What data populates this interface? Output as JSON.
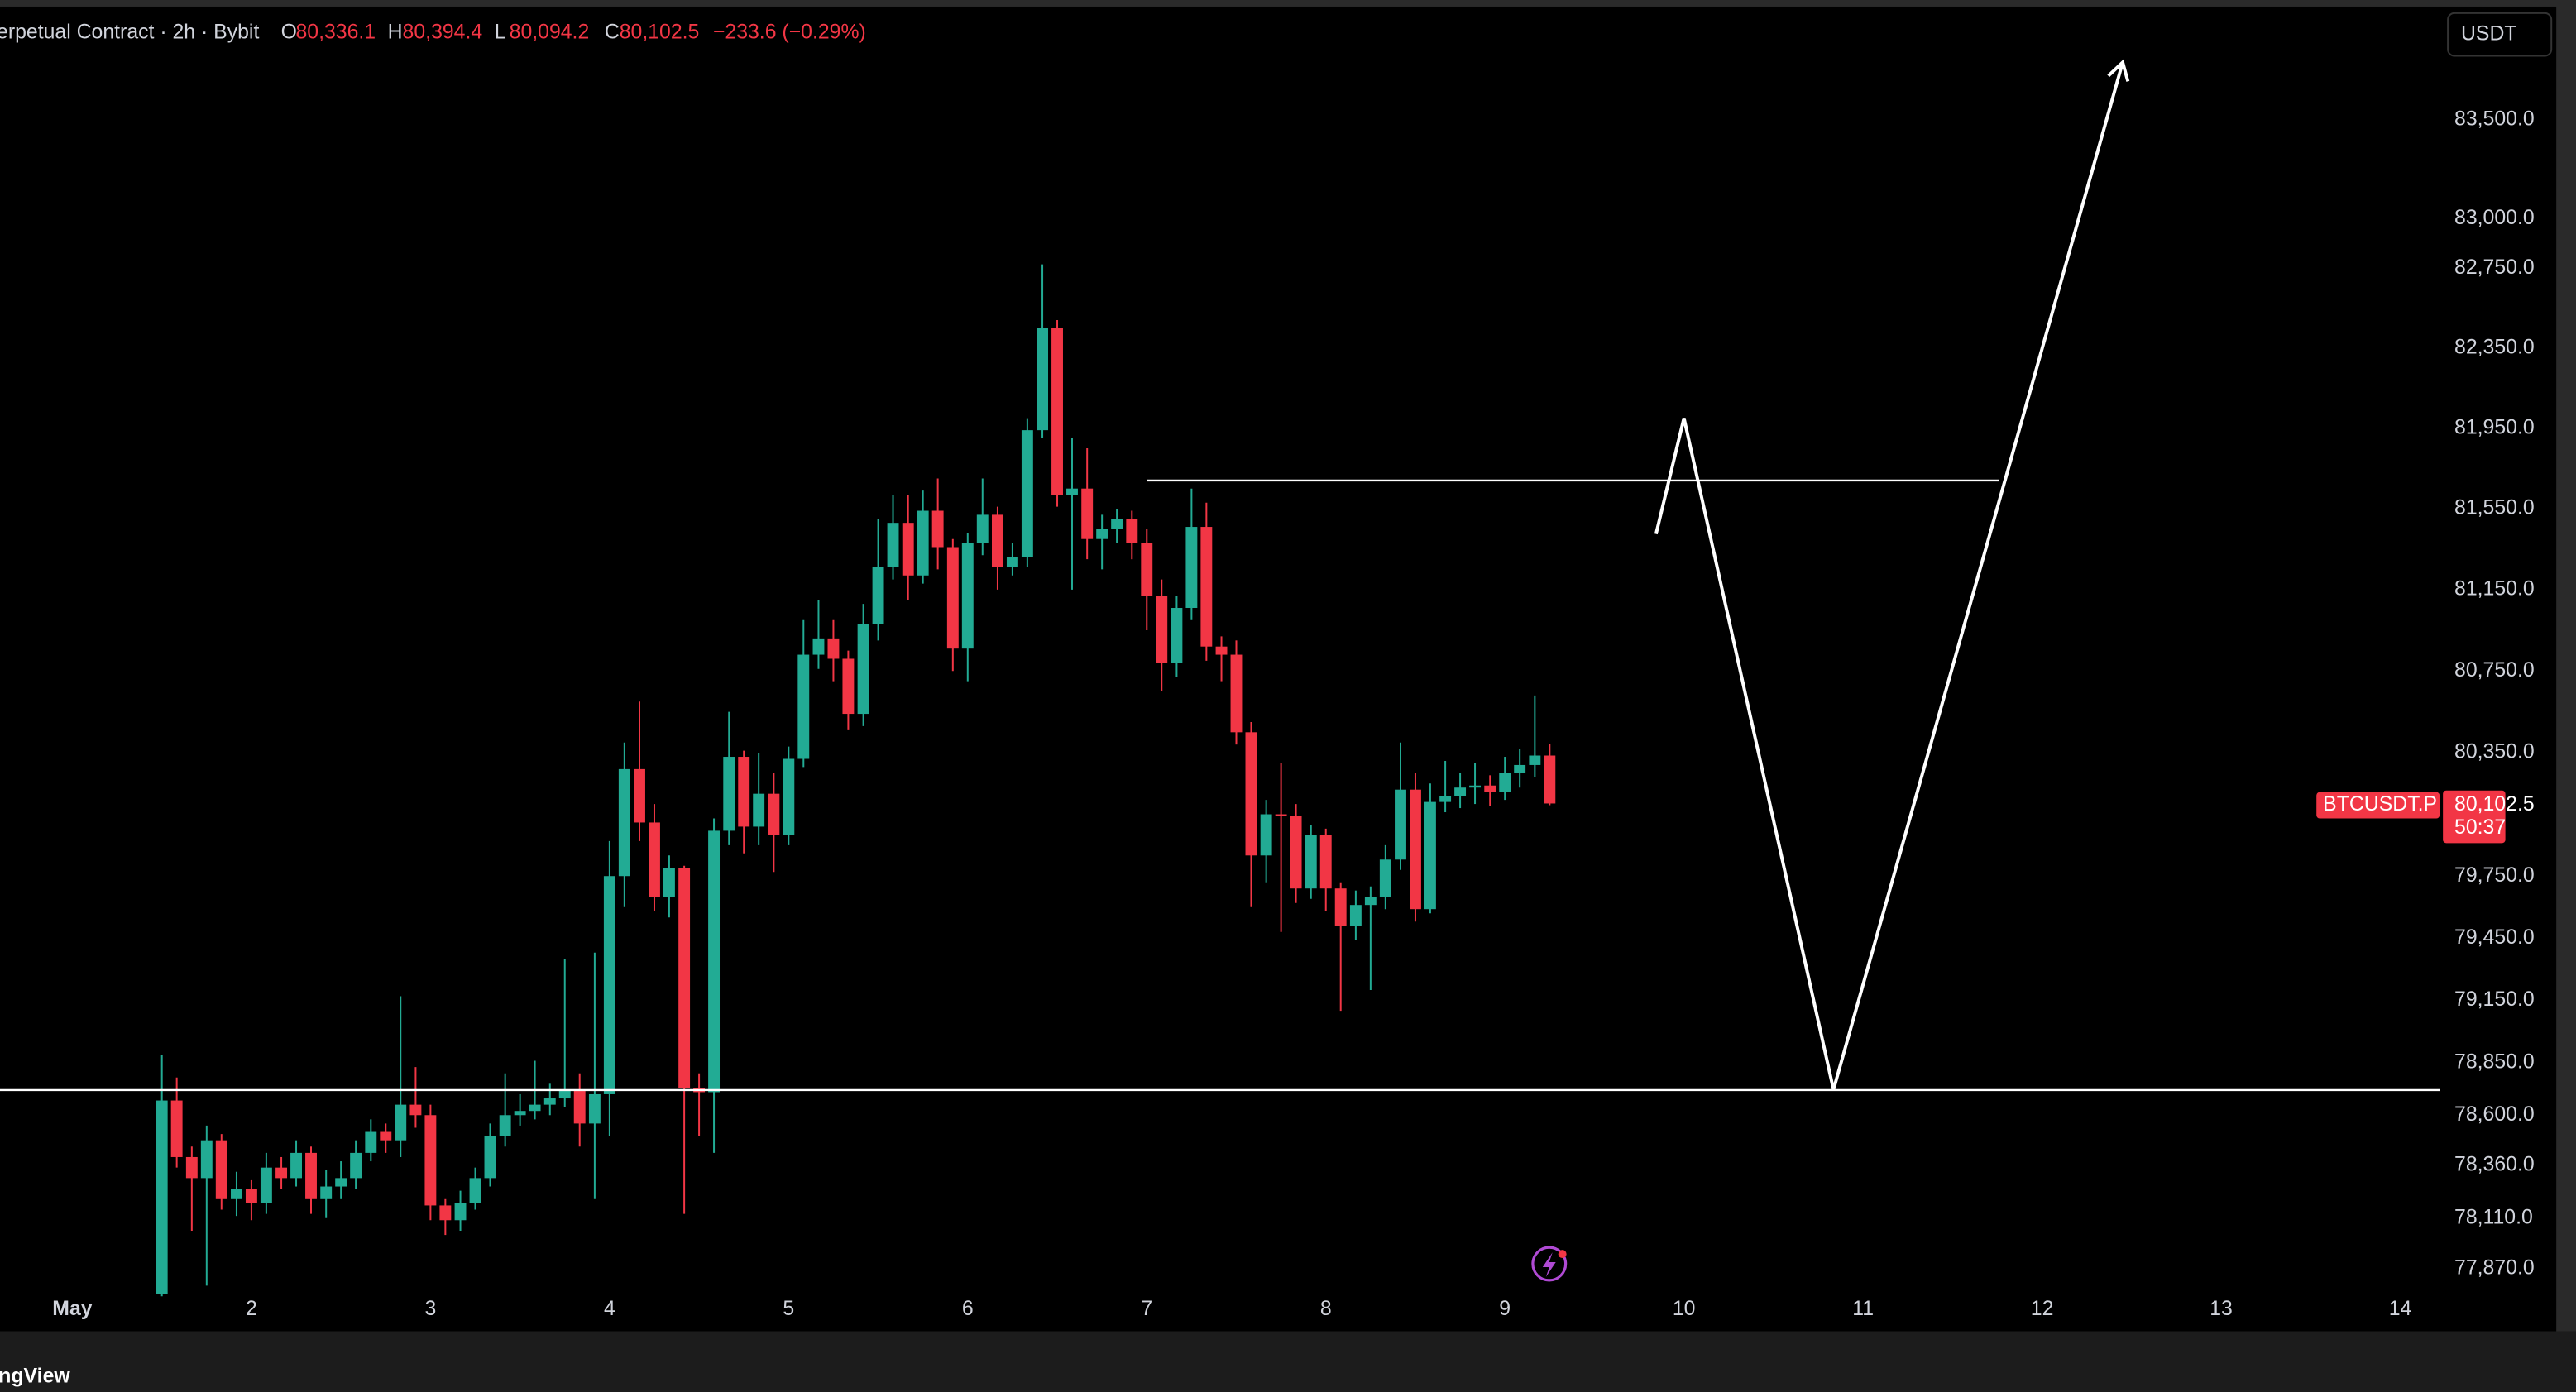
{
  "chart_data": {
    "type": "candlestick",
    "header": {
      "symbol": "erpetual Contract · 2h · Bybit",
      "ohlc_labels": [
        "O",
        "H",
        "L",
        "C"
      ],
      "ohlc_values": [
        "80,336.1",
        "80,394.4",
        "80,094.2",
        "80,102.5"
      ],
      "change": "−233.6 (−0.29%)"
    },
    "currency": "USDT",
    "price_tag": {
      "symbol": "BTCUSDT.P",
      "price": "80,102.5",
      "countdown": "50:37"
    },
    "watermark": "dingView",
    "log_scale": true,
    "grid": false,
    "up_color": "#22ab94",
    "down_color": "#f23645",
    "drawing_color": "#ffffff",
    "xlim": [
      0.596,
      14.22
    ],
    "xticks": [
      {
        "value": 1,
        "label": "May"
      },
      2,
      3,
      4,
      5,
      6,
      7,
      8,
      9,
      10,
      11,
      12,
      13,
      14
    ],
    "ylim": [
      77575,
      84110
    ],
    "yticks": [
      {
        "value": 83500,
        "label": "83,500.0"
      },
      {
        "value": 83000,
        "label": "83,000.0"
      },
      {
        "value": 82750,
        "label": "82,750.0"
      },
      {
        "value": 82350,
        "label": "82,350.0"
      },
      {
        "value": 81950,
        "label": "81,950.0"
      },
      {
        "value": 81550,
        "label": "81,550.0"
      },
      {
        "value": 81150,
        "label": "81,150.0"
      },
      {
        "value": 80750,
        "label": "80,750.0"
      },
      {
        "value": 80350,
        "label": "80,350.0"
      },
      {
        "value": 79750,
        "label": "79,750.0"
      },
      {
        "value": 79450,
        "label": "79,450.0"
      },
      {
        "value": 79150,
        "label": "79,150.0"
      },
      {
        "value": 78850,
        "label": "78,850.0"
      },
      {
        "value": 78600,
        "label": "78,600.0"
      },
      {
        "value": 78360,
        "label": "78,360.0"
      },
      {
        "value": 78110,
        "label": "78,110.0"
      },
      {
        "value": 77870,
        "label": "77,870.0"
      }
    ],
    "x": [
      1.5,
      1.583,
      1.667,
      1.75,
      1.833,
      1.917,
      2,
      2.083,
      2.167,
      2.25,
      2.333,
      2.417,
      2.5,
      2.583,
      2.667,
      2.75,
      2.833,
      2.917,
      3,
      3.083,
      3.167,
      3.25,
      3.333,
      3.417,
      3.5,
      3.583,
      3.667,
      3.75,
      3.833,
      3.917,
      4,
      4.083,
      4.167,
      4.25,
      4.333,
      4.417,
      4.5,
      4.583,
      4.667,
      4.75,
      4.833,
      4.917,
      5,
      5.083,
      5.167,
      5.25,
      5.333,
      5.417,
      5.5,
      5.583,
      5.667,
      5.75,
      5.833,
      5.917,
      6,
      6.083,
      6.167,
      6.25,
      6.333,
      6.417,
      6.5,
      6.583,
      6.667,
      6.75,
      6.833,
      6.917,
      7,
      7.083,
      7.167,
      7.25,
      7.333,
      7.417,
      7.5,
      7.583,
      7.667,
      7.75,
      7.833,
      7.917,
      8,
      8.083,
      8.167,
      8.25,
      8.333,
      8.417,
      8.5,
      8.583,
      8.667,
      8.75,
      8.833,
      8.917,
      9,
      9.083,
      9.167,
      9.25
    ],
    "open": [
      77750,
      78670,
      78400,
      78300,
      78480,
      78200,
      78250,
      78180,
      78350,
      78300,
      78420,
      78200,
      78260,
      78300,
      78420,
      78520,
      78480,
      78650,
      78600,
      78170,
      78100,
      78180,
      78300,
      78500,
      78600,
      78620,
      78650,
      78680,
      78720,
      78560,
      78700,
      79750,
      80270,
      80010,
      79650,
      79790,
      78730,
      78710,
      79970,
      80330,
      79990,
      80150,
      79950,
      80320,
      80830,
      80910,
      80810,
      80540,
      80980,
      81260,
      81480,
      81220,
      81540,
      81360,
      80860,
      81380,
      81520,
      81260,
      81310,
      81940,
      82450,
      81620,
      81650,
      81400,
      81450,
      81500,
      81380,
      81120,
      80790,
      81060,
      81460,
      80870,
      80830,
      80450,
      79850,
      80050,
      80040,
      79690,
      79950,
      79690,
      79510,
      79610,
      79650,
      79830,
      80170,
      79590,
      80110,
      80140,
      80180,
      80190,
      80160,
      80250,
      80290,
      80336.1
    ],
    "high": [
      78890,
      78780,
      78450,
      78550,
      78510,
      78330,
      78290,
      78420,
      78400,
      78480,
      78450,
      78340,
      78380,
      78480,
      78580,
      78560,
      79170,
      78830,
      78650,
      78200,
      78240,
      78350,
      78560,
      78800,
      78700,
      78860,
      78750,
      79350,
      78800,
      79380,
      79920,
      80400,
      80600,
      80100,
      79850,
      79800,
      78800,
      80030,
      80550,
      80360,
      80350,
      80250,
      80380,
      81000,
      81100,
      81000,
      80850,
      81080,
      81500,
      81620,
      81620,
      81640,
      81700,
      81400,
      81430,
      81700,
      81560,
      81380,
      82000,
      82770,
      82490,
      81900,
      81850,
      81520,
      81550,
      81540,
      81450,
      81200,
      81120,
      81650,
      81580,
      80920,
      80900,
      80500,
      80120,
      80300,
      80100,
      80000,
      79980,
      79720,
      79680,
      79700,
      79900,
      80400,
      80250,
      80200,
      80310,
      80250,
      80300,
      80240,
      80330,
      80370,
      80630,
      80394.4
    ],
    "low": [
      77740,
      78350,
      78050,
      77790,
      78150,
      78120,
      78100,
      78130,
      78250,
      78260,
      78130,
      78110,
      78200,
      78250,
      78380,
      78420,
      78400,
      78540,
      78100,
      78030,
      78050,
      78150,
      78260,
      78450,
      78550,
      78580,
      78600,
      78640,
      78450,
      78200,
      78500,
      79600,
      79920,
      79580,
      79550,
      78130,
      78500,
      78420,
      79900,
      79860,
      79900,
      79770,
      79900,
      80280,
      80760,
      80700,
      80460,
      80480,
      80900,
      81200,
      81100,
      81180,
      81250,
      80750,
      80700,
      81320,
      81150,
      81220,
      81260,
      81900,
      81560,
      81150,
      81300,
      81250,
      81380,
      81300,
      80950,
      80650,
      80720,
      81000,
      80800,
      80700,
      80390,
      79600,
      79720,
      79480,
      79620,
      79640,
      79580,
      79100,
      79440,
      79200,
      79590,
      79780,
      79530,
      79570,
      80060,
      80080,
      80100,
      80090,
      80120,
      80180,
      80230,
      80094.2
    ],
    "close": [
      78670,
      78400,
      78300,
      78480,
      78200,
      78250,
      78180,
      78350,
      78300,
      78420,
      78200,
      78260,
      78300,
      78420,
      78520,
      78480,
      78650,
      78600,
      78170,
      78100,
      78180,
      78300,
      78500,
      78600,
      78620,
      78650,
      78680,
      78720,
      78560,
      78700,
      79750,
      80270,
      80010,
      79650,
      79790,
      78730,
      78710,
      79970,
      80330,
      79990,
      80150,
      79950,
      80320,
      80830,
      80910,
      80810,
      80540,
      80980,
      81260,
      81480,
      81220,
      81540,
      81360,
      80860,
      81380,
      81520,
      81260,
      81310,
      81940,
      82450,
      81620,
      81650,
      81400,
      81450,
      81500,
      81380,
      81120,
      80790,
      81060,
      81460,
      80870,
      80830,
      80450,
      79850,
      80050,
      80040,
      79690,
      79950,
      79690,
      79510,
      79610,
      79650,
      79830,
      80170,
      79590,
      80110,
      80140,
      80180,
      80190,
      80160,
      80250,
      80290,
      80336.1,
      80102.5
    ],
    "drawings": {
      "support": {
        "y": 78720
      },
      "resistance": {
        "y": 81690,
        "x": [
          7.0,
          11.76
        ]
      },
      "projection": {
        "x": [
          9.844,
          10.0,
          10.835,
          12.45
        ],
        "y": [
          81425,
          82000,
          78722,
          83792
        ]
      }
    }
  }
}
